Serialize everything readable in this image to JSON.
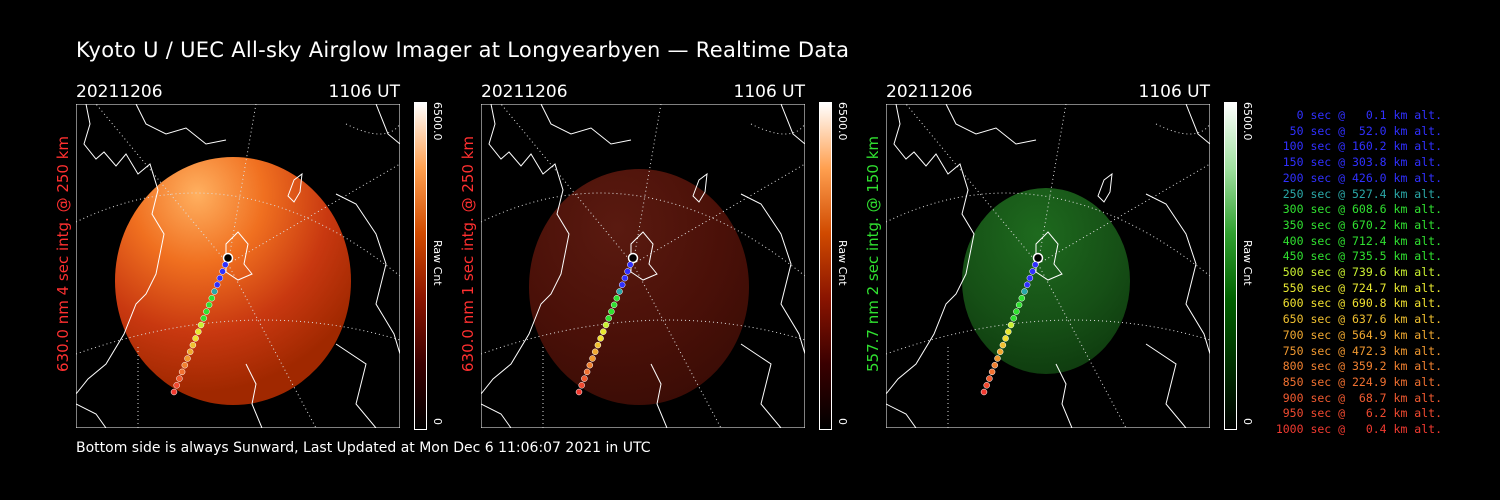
{
  "title": "Kyoto U / UEC All-sky Airglow Imager at Longyearbyen — Realtime Data",
  "footer": "Bottom side is always Sunward, Last Updated at Mon Dec  6 11:06:07 2021 in UTC",
  "panels": [
    {
      "date": "20211206",
      "time": "1106 UT",
      "side_label": "630.0 nm 4 sec intg. @ 250 km",
      "label_color": "#ff3030",
      "cbar_max": "6500.0",
      "cbar_min": "0",
      "cbar_unit": "Raw Cnt",
      "theme": "red-bright"
    },
    {
      "date": "20211206",
      "time": "1106 UT",
      "side_label": "630.0 nm 1 sec intg. @ 250 km",
      "label_color": "#ff3030",
      "cbar_max": "6500.0",
      "cbar_min": "0",
      "cbar_unit": "Raw Cnt",
      "theme": "red-dark"
    },
    {
      "date": "20211206",
      "time": "1106 UT",
      "side_label": "557.7 nm 2 sec intg. @ 150 km",
      "label_color": "#30e030",
      "cbar_max": "6500.0",
      "cbar_min": "0",
      "cbar_unit": "Raw Cnt",
      "theme": "green"
    }
  ],
  "legend": [
    {
      "text": "0 sec @   0.1 km alt.",
      "color": "#3030ff"
    },
    {
      "text": "50 sec @  52.0 km alt.",
      "color": "#3030ff"
    },
    {
      "text": "100 sec @ 160.2 km alt.",
      "color": "#3030ff"
    },
    {
      "text": "150 sec @ 303.8 km alt.",
      "color": "#3030ff"
    },
    {
      "text": "200 sec @ 426.0 km alt.",
      "color": "#3030ff"
    },
    {
      "text": "250 sec @ 527.4 km alt.",
      "color": "#2aa8a8"
    },
    {
      "text": "300 sec @ 608.6 km alt.",
      "color": "#30e030"
    },
    {
      "text": "350 sec @ 670.2 km alt.",
      "color": "#30e030"
    },
    {
      "text": "400 sec @ 712.4 km alt.",
      "color": "#30e030"
    },
    {
      "text": "450 sec @ 735.5 km alt.",
      "color": "#30e030"
    },
    {
      "text": "500 sec @ 739.6 km alt.",
      "color": "#c8f030"
    },
    {
      "text": "550 sec @ 724.7 km alt.",
      "color": "#e8e830"
    },
    {
      "text": "600 sec @ 690.8 km alt.",
      "color": "#f0e030"
    },
    {
      "text": "650 sec @ 637.6 km alt.",
      "color": "#f0c030"
    },
    {
      "text": "700 sec @ 564.9 km alt.",
      "color": "#f0a830"
    },
    {
      "text": "750 sec @ 472.3 km alt.",
      "color": "#f09830"
    },
    {
      "text": "800 sec @ 359.2 km alt.",
      "color": "#f08030"
    },
    {
      "text": "850 sec @ 224.9 km alt.",
      "color": "#f07030"
    },
    {
      "text": "900 sec @  68.7 km alt.",
      "color": "#f05a30"
    },
    {
      "text": "950 sec @   6.2 km alt.",
      "color": "#f04a30"
    },
    {
      "text": "1000 sec @   0.4 km alt.",
      "color": "#f03a30"
    }
  ]
}
